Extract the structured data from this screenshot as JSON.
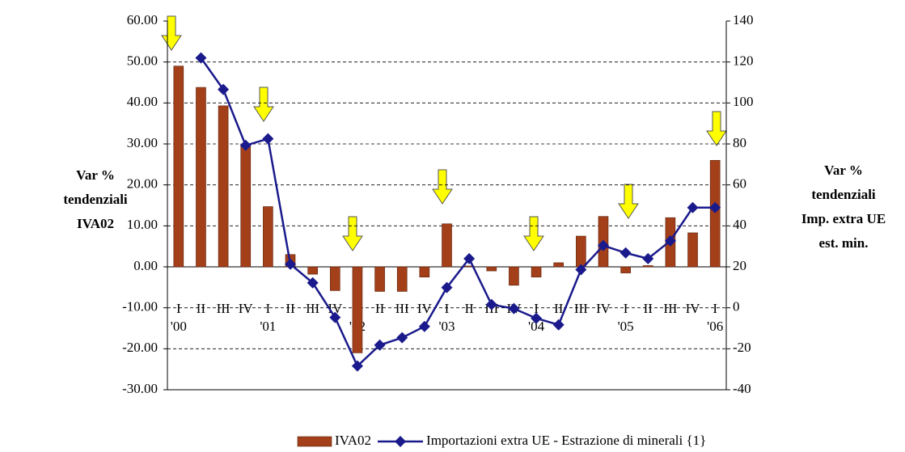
{
  "chart_data": {
    "type": "bar_line",
    "categories": [
      "I",
      "II",
      "III",
      "IV",
      "I",
      "II",
      "III",
      "IV",
      "I",
      "II",
      "III",
      "IV",
      "I",
      "II",
      "III",
      "IV",
      "I",
      "II",
      "III",
      "IV",
      "I",
      "II",
      "III",
      "IV",
      "I"
    ],
    "year_labels": [
      "'00",
      null,
      null,
      null,
      "'01",
      null,
      null,
      null,
      "'02",
      null,
      null,
      null,
      "'03",
      null,
      null,
      null,
      "'04",
      null,
      null,
      null,
      "'05",
      null,
      null,
      null,
      "'06"
    ],
    "ylabel": [
      "Var %",
      "tendenziali",
      "IVA02"
    ],
    "y2label": [
      "Var %",
      "tendenziali",
      "Imp. extra UE",
      "est. min."
    ],
    "ylim": [
      -30,
      60
    ],
    "yticks": [
      {
        "value": -30,
        "label": "-30.00"
      },
      {
        "value": -20,
        "label": "-20.00"
      },
      {
        "value": -10,
        "label": "-10.00"
      },
      {
        "value": 0,
        "label": "0.00"
      },
      {
        "value": 10,
        "label": "10.00"
      },
      {
        "value": 20,
        "label": "20.00"
      },
      {
        "value": 30,
        "label": "30.00"
      },
      {
        "value": 40,
        "label": "40.00"
      },
      {
        "value": 50,
        "label": "50.00"
      },
      {
        "value": 60,
        "label": "60.00"
      }
    ],
    "y2lim": [
      -40,
      140
    ],
    "y2ticks": [
      -40,
      -20,
      0,
      20,
      40,
      60,
      80,
      100,
      120,
      140
    ],
    "grid": true,
    "series": [
      {
        "name": "IVA02",
        "type": "bar",
        "color": "#a3401a",
        "values": [
          49,
          43.8,
          39.3,
          30,
          14.7,
          3,
          -1.8,
          -5.8,
          -21,
          -6,
          -6,
          -2.5,
          10.5,
          0.2,
          -1,
          -4.5,
          -2.5,
          1,
          7.5,
          12.3,
          -1.5,
          0.3,
          12,
          8.3,
          26
        ]
      },
      {
        "name": "Importazioni extra UE - Estrazione di minerali {1}",
        "type": "line",
        "axis": "y2",
        "color": "#1a1a8c",
        "values": [
          null,
          122,
          106.6,
          79.3,
          82.5,
          21.3,
          12.2,
          -4.7,
          -28.4,
          -18.2,
          -14.6,
          -9.1,
          9.9,
          24,
          1.6,
          -0.4,
          -5.1,
          -8.3,
          18.6,
          30.4,
          26.8,
          24,
          32.7,
          48.9,
          48.9
        ]
      }
    ]
  }
}
